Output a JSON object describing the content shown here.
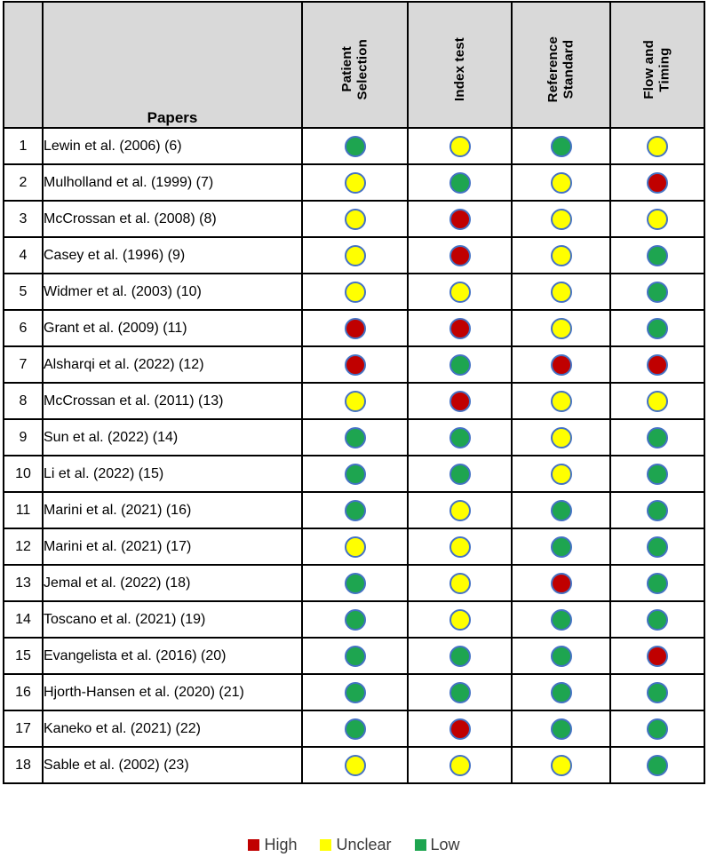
{
  "table": {
    "papers_label": "Papers",
    "domains": [
      "Patient\nSelection",
      "Index test",
      "Reference\nStandard",
      "Flow and\nTiming"
    ],
    "rows": [
      {
        "num": "1",
        "paper": "Lewin et al. (2006) (6)",
        "ratings": [
          "low",
          "unclear",
          "low",
          "unclear"
        ]
      },
      {
        "num": "2",
        "paper": "Mulholland et al. (1999) (7)",
        "ratings": [
          "unclear",
          "low",
          "unclear",
          "high"
        ]
      },
      {
        "num": "3",
        "paper": "McCrossan et al. (2008) (8)",
        "ratings": [
          "unclear",
          "high",
          "unclear",
          "unclear"
        ]
      },
      {
        "num": "4",
        "paper": "Casey et al. (1996) (9)",
        "ratings": [
          "unclear",
          "high",
          "unclear",
          "low"
        ]
      },
      {
        "num": "5",
        "paper": "Widmer et al. (2003) (10)",
        "ratings": [
          "unclear",
          "unclear",
          "unclear",
          "low"
        ]
      },
      {
        "num": "6",
        "paper": "Grant et al. (2009) (11)",
        "ratings": [
          "high",
          "high",
          "unclear",
          "low"
        ]
      },
      {
        "num": "7",
        "paper": "Alsharqi et al. (2022) (12)",
        "ratings": [
          "high",
          "low",
          "high",
          "high"
        ]
      },
      {
        "num": "8",
        "paper": "McCrossan et al. (2011) (13)",
        "ratings": [
          "unclear",
          "high",
          "unclear",
          "unclear"
        ]
      },
      {
        "num": "9",
        "paper": "Sun et al. (2022) (14)",
        "ratings": [
          "low",
          "low",
          "unclear",
          "low"
        ]
      },
      {
        "num": "10",
        "paper": "Li et al. (2022) (15)",
        "ratings": [
          "low",
          "low",
          "unclear",
          "low"
        ]
      },
      {
        "num": "11",
        "paper": "Marini et al. (2021) (16)",
        "ratings": [
          "low",
          "unclear",
          "low",
          "low"
        ]
      },
      {
        "num": "12",
        "paper": "Marini et al. (2021) (17)",
        "ratings": [
          "unclear",
          "unclear",
          "low",
          "low"
        ]
      },
      {
        "num": "13",
        "paper": "Jemal et al. (2022) (18)",
        "ratings": [
          "low",
          "unclear",
          "high",
          "low"
        ]
      },
      {
        "num": "14",
        "paper": "Toscano et al. (2021) (19)",
        "ratings": [
          "low",
          "unclear",
          "low",
          "low"
        ]
      },
      {
        "num": "15",
        "paper": "Evangelista et al. (2016) (20)",
        "ratings": [
          "low",
          "low",
          "low",
          "high"
        ]
      },
      {
        "num": "16",
        "paper": "Hjorth-Hansen et al. (2020) (21)",
        "ratings": [
          "low",
          "low",
          "low",
          "low"
        ]
      },
      {
        "num": "17",
        "paper": "Kaneko et al. (2021) (22)",
        "ratings": [
          "low",
          "high",
          "low",
          "low"
        ]
      },
      {
        "num": "18",
        "paper": "Sable et al. (2002) (23)",
        "ratings": [
          "unclear",
          "unclear",
          "unclear",
          "low"
        ]
      }
    ]
  },
  "legend": {
    "items": [
      {
        "label": "High",
        "level": "high"
      },
      {
        "label": "Unclear",
        "level": "unclear"
      },
      {
        "label": "Low",
        "level": "low"
      }
    ]
  },
  "colors": {
    "high": "#C00000",
    "unclear": "#FFFF00",
    "low": "#1EA550",
    "dot_border": "#4472C4",
    "header_bg": "#D9D9D9"
  }
}
